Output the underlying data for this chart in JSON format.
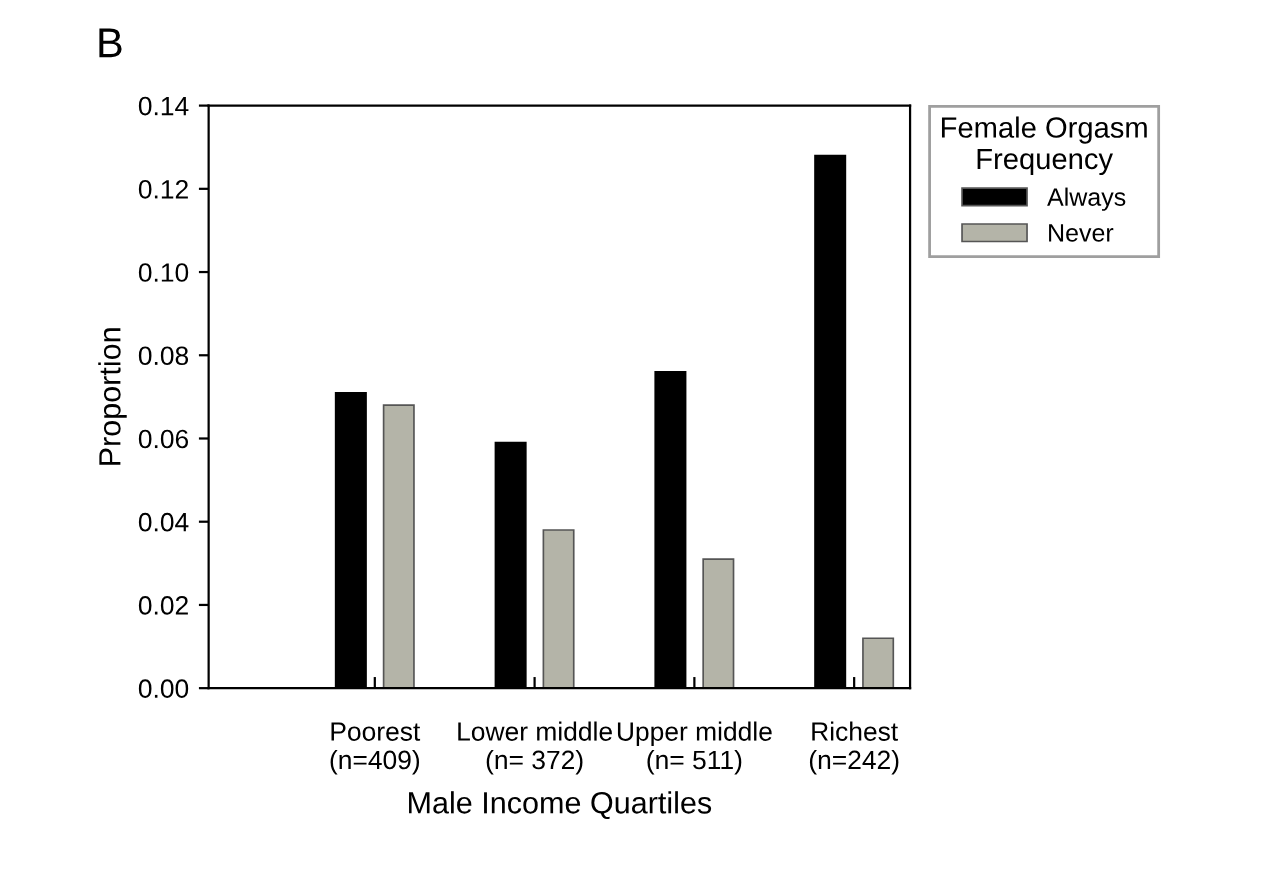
{
  "chart_data": {
    "type": "bar",
    "title": "B",
    "xlabel": "Male Income Quartiles",
    "ylabel": "Proportion",
    "legend_title": "Female Orgasm\nFrequency",
    "legend": "top right",
    "categories": [
      "Poorest\n(n=409)",
      "Lower middle\n(n= 372)",
      "Upper middle\n(n= 511)",
      "Richest\n(n=242)"
    ],
    "series": [
      {
        "name": "Always",
        "color": "#000000",
        "values": [
          0.071,
          0.059,
          0.076,
          0.128
        ]
      },
      {
        "name": "Never",
        "color": "#b4b4a8",
        "values": [
          0.068,
          0.038,
          0.031,
          0.012
        ]
      }
    ],
    "ylim": [
      0,
      0.14
    ],
    "yticks": [
      {
        "value": 0,
        "label": "0.00"
      },
      {
        "value": 0.02,
        "label": "0.02"
      },
      {
        "value": 0.04,
        "label": "0.04"
      },
      {
        "value": 0.06,
        "label": "0.06"
      },
      {
        "value": 0.08,
        "label": "0.08"
      },
      {
        "value": 0.1,
        "label": "0.10"
      },
      {
        "value": 0.12,
        "label": "0.12"
      },
      {
        "value": 0.14,
        "label": "0.14"
      }
    ],
    "grid": false
  }
}
